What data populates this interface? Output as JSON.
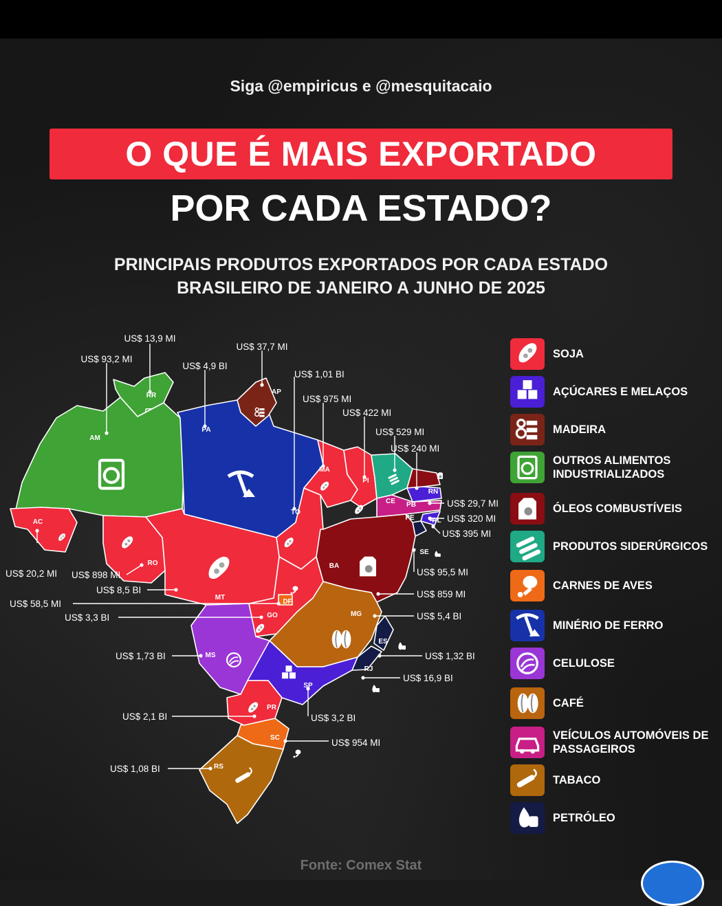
{
  "header": {
    "handle": "Siga @empiricus e @mesquitacaio",
    "title_line1": "O QUE É MAIS EXPORTADO",
    "title_line2": "POR CADA ESTADO?",
    "subtitle_line1": "PRINCIPAIS PRODUTOS EXPORTADOS POR CADA ESTADO",
    "subtitle_line2": "BRASILEIRO DE JANEIRO A JUNHO DE 2025"
  },
  "legend": [
    {
      "key": "soja",
      "label": "SOJA",
      "color": "#ef2b3c",
      "icon": "soy-icon"
    },
    {
      "key": "acucar",
      "label": "AÇÚCARES E MELAÇOS",
      "color": "#4a1fd6",
      "icon": "sugar-cubes-icon"
    },
    {
      "key": "madeira",
      "label": "MADEIRA",
      "color": "#7a2418",
      "icon": "wood-logs-icon"
    },
    {
      "key": "alimentos",
      "label": "OUTROS ALIMENTOS INDUSTRIALIZADOS",
      "color": "#3fa335",
      "icon": "food-package-icon"
    },
    {
      "key": "oleos",
      "label": "ÓLEOS COMBUSTÍVEIS",
      "color": "#8a0d13",
      "icon": "fuel-can-icon"
    },
    {
      "key": "siderurgicos",
      "label": "PRODUTOS SIDERÚRGICOS",
      "color": "#1fa985",
      "icon": "steel-pipes-icon"
    },
    {
      "key": "aves",
      "label": "CARNES DE AVES",
      "color": "#ef6a17",
      "icon": "chicken-leg-icon"
    },
    {
      "key": "minerio",
      "label": "MINÉRIO DE FERRO",
      "color": "#1732a8",
      "icon": "pickaxe-icon"
    },
    {
      "key": "celulose",
      "label": "CELULOSE",
      "color": "#9a35d6",
      "icon": "pulp-icon"
    },
    {
      "key": "cafe",
      "label": "CAFÉ",
      "color": "#b9640f",
      "icon": "coffee-bean-icon"
    },
    {
      "key": "veiculos",
      "label": "VEÍCULOS AUTOMÓVEIS DE PASSAGEIROS",
      "color": "#c71f86",
      "icon": "car-icon"
    },
    {
      "key": "tabaco",
      "label": "TABACO",
      "color": "#b0680c",
      "icon": "cigar-icon"
    },
    {
      "key": "petroleo",
      "label": "PETRÓLEO",
      "color": "#141b45",
      "icon": "oil-drop-icon"
    }
  ],
  "states": [
    {
      "code": "RR",
      "value": "US$ 13,9 MI",
      "product": "alimentos"
    },
    {
      "code": "AM",
      "value": "US$ 93,2 MI",
      "product": "alimentos"
    },
    {
      "code": "PA",
      "value": "US$ 4,9 BI",
      "product": "minerio"
    },
    {
      "code": "AP",
      "value": "US$ 37,7 MI",
      "product": "madeira"
    },
    {
      "code": "TO",
      "value": "US$ 1,01 BI",
      "product": "soja"
    },
    {
      "code": "MA",
      "value": "US$ 975 MI",
      "product": "soja"
    },
    {
      "code": "PI",
      "value": "US$ 422 MI",
      "product": "soja"
    },
    {
      "code": "CE",
      "value": "US$ 529 MI",
      "product": "siderurgicos"
    },
    {
      "code": "RN",
      "value": "US$ 240 MI",
      "product": "oleos"
    },
    {
      "code": "PB",
      "value": "US$ 29,7 MI",
      "product": "acucar"
    },
    {
      "code": "PE",
      "value": "US$ 320 MI",
      "product": "veiculos"
    },
    {
      "code": "AL",
      "value": "US$ 395 MI",
      "product": "acucar"
    },
    {
      "code": "SE",
      "value": "US$ 95,5 MI",
      "product": "petroleo"
    },
    {
      "code": "BA",
      "value": "US$ 859 MI",
      "product": "oleos"
    },
    {
      "code": "MG",
      "value": "US$ 5,4 BI",
      "product": "cafe"
    },
    {
      "code": "ES",
      "value": "US$ 1,32 BI",
      "product": "petroleo"
    },
    {
      "code": "RJ",
      "value": "US$ 16,9 BI",
      "product": "petroleo"
    },
    {
      "code": "SP",
      "value": "US$ 3,2 BI",
      "product": "acucar"
    },
    {
      "code": "SC",
      "value": "US$ 954 MI",
      "product": "aves"
    },
    {
      "code": "RS",
      "value": "US$ 1,08 BI",
      "product": "tabaco"
    },
    {
      "code": "PR",
      "value": "US$ 2,1 BI",
      "product": "soja"
    },
    {
      "code": "MS",
      "value": "US$ 1,73 BI",
      "product": "celulose"
    },
    {
      "code": "GO",
      "value": "US$ 3,3 BI",
      "product": "soja"
    },
    {
      "code": "DF",
      "value": "US$ 58,5 MI",
      "product": "aves"
    },
    {
      "code": "MT",
      "value": "US$ 8,5 BI",
      "product": "soja"
    },
    {
      "code": "RO",
      "value": "US$ 898 MI",
      "product": "soja"
    },
    {
      "code": "AC",
      "value": "US$ 20,2 MI",
      "product": "soja"
    }
  ],
  "footer": {
    "source": "Fonte: Comex Stat"
  }
}
